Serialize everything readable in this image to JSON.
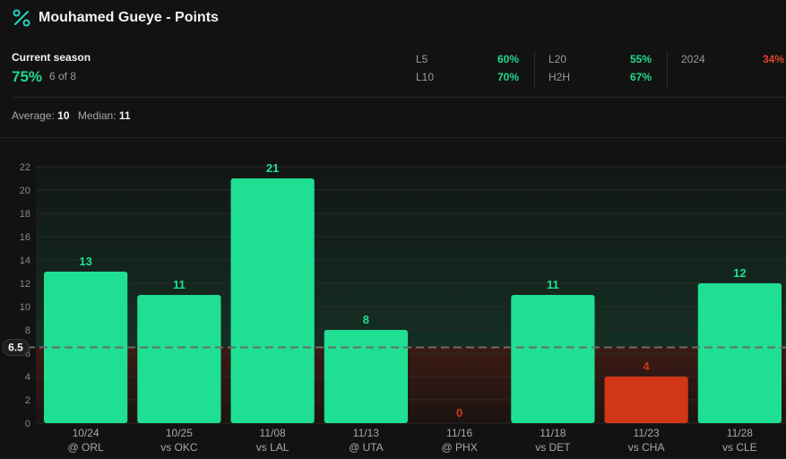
{
  "header": {
    "title": "Mouhamed Gueye - Points",
    "icon": "percent-icon"
  },
  "season": {
    "label": "Current season",
    "pct": "75%",
    "fraction": "6 of 8"
  },
  "stats": [
    {
      "label": "L5",
      "value": "60%",
      "status": "green"
    },
    {
      "label": "L10",
      "value": "70%",
      "status": "green"
    },
    {
      "label": "L20",
      "value": "55%",
      "status": "green"
    },
    {
      "label": "H2H",
      "value": "67%",
      "status": "green"
    },
    {
      "label": "2024",
      "value": "34%",
      "status": "red"
    }
  ],
  "summary": {
    "avg_label": "Average:",
    "avg_value": "10",
    "median_label": "Median:",
    "median_value": "11"
  },
  "colors": {
    "over": "#1fdf93",
    "under": "#d13616",
    "line": "#6b6b6b"
  },
  "chart_data": {
    "type": "bar",
    "title": "Mouhamed Gueye - Points",
    "line_value": 6.5,
    "line_label": "6.5",
    "ylim": [
      0,
      22
    ],
    "yticks": [
      0,
      2,
      4,
      6,
      8,
      10,
      12,
      14,
      16,
      18,
      20,
      22
    ],
    "dates": [
      "10/24",
      "10/25",
      "11/08",
      "11/13",
      "11/16",
      "11/18",
      "11/23",
      "11/28"
    ],
    "opponents": [
      "@ ORL",
      "vs OKC",
      "vs LAL",
      "@ UTA",
      "@ PHX",
      "vs DET",
      "vs CHA",
      "vs CLE"
    ],
    "values": [
      13,
      11,
      21,
      8,
      0,
      11,
      4,
      12
    ]
  }
}
